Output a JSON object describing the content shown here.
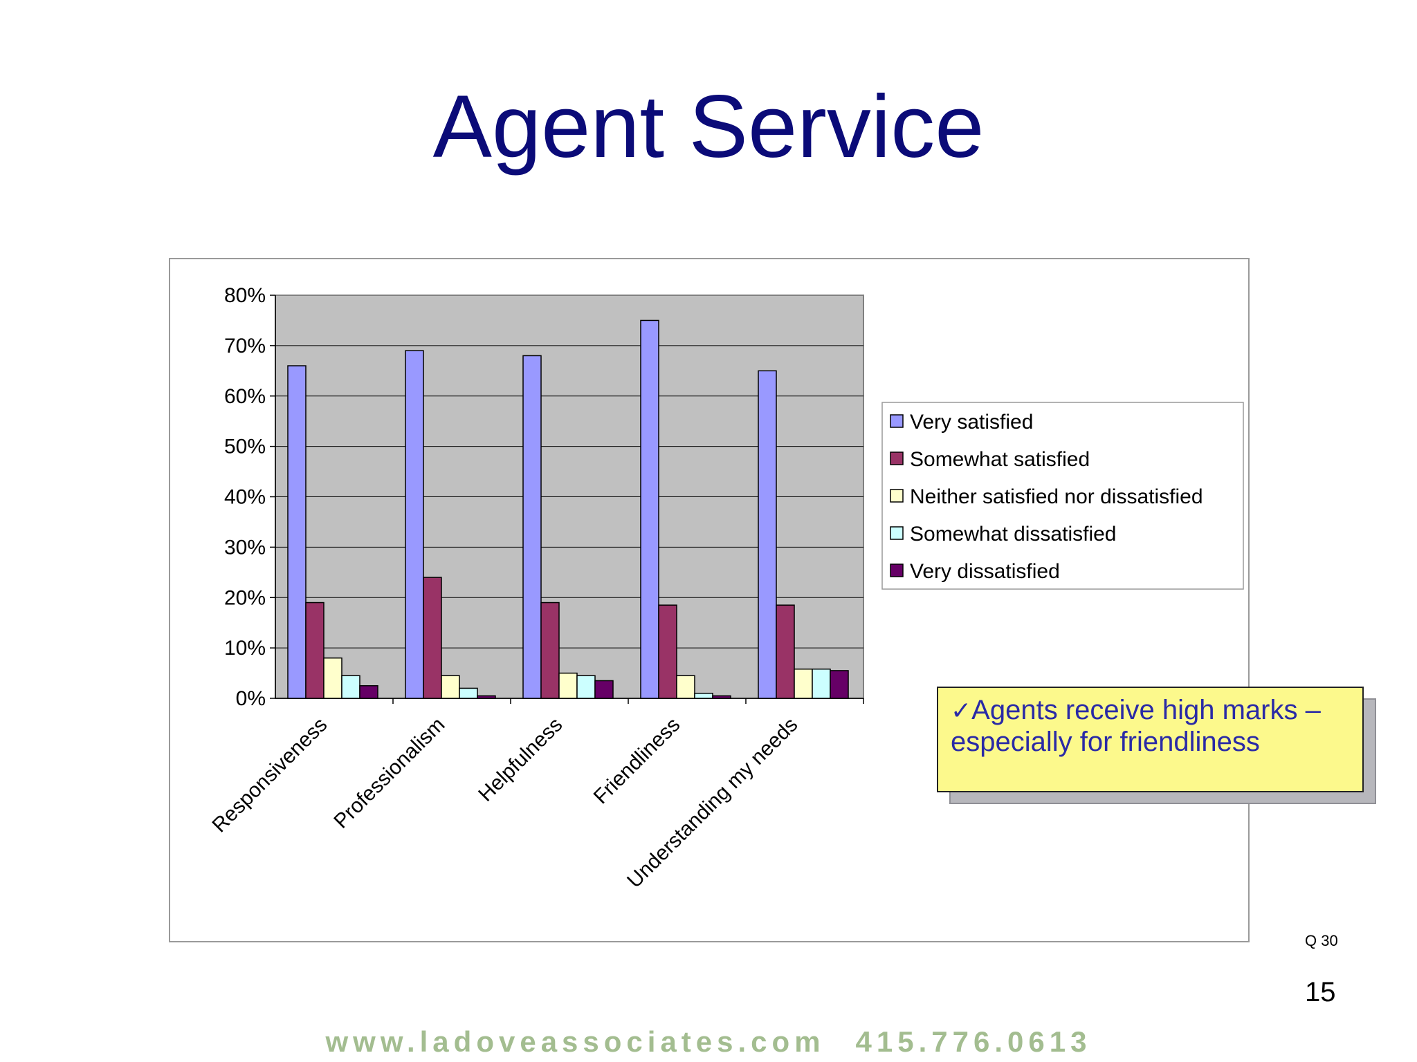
{
  "slide": {
    "title": "Agent Service",
    "callout": "Agents receive high marks – especially for friendliness",
    "callout_check": "✓",
    "question_ref": "Q 30",
    "page_number": "15",
    "footer_url": "www.ladoveassociates.com",
    "footer_phone": "415.776.0613"
  },
  "chart_data": {
    "type": "bar",
    "categories": [
      "Responsiveness",
      "Professionalism",
      "Helpfulness",
      "Friendliness",
      "Understanding my needs"
    ],
    "series": [
      {
        "name": "Very satisfied",
        "color": "#9999ff",
        "values": [
          66,
          69,
          68,
          75,
          65
        ]
      },
      {
        "name": "Somewhat satisfied",
        "color": "#993366",
        "values": [
          19,
          24,
          19,
          18.5,
          18.5
        ]
      },
      {
        "name": "Neither satisfied nor dissatisfied",
        "color": "#ffffcc",
        "values": [
          8,
          4.5,
          5,
          4.5,
          5.8
        ]
      },
      {
        "name": "Somewhat dissatisfied",
        "color": "#ccffff",
        "values": [
          4.5,
          2,
          4.5,
          1,
          5.8
        ]
      },
      {
        "name": "Very dissatisfied",
        "color": "#660066",
        "values": [
          2.5,
          0.5,
          3.5,
          0.5,
          5.5
        ]
      }
    ],
    "ylim": [
      0,
      80
    ],
    "yticks": [
      "0%",
      "10%",
      "20%",
      "30%",
      "40%",
      "50%",
      "60%",
      "70%",
      "80%"
    ],
    "plot_background": "#c0c0c0",
    "grid": true,
    "legend_position": "right"
  }
}
